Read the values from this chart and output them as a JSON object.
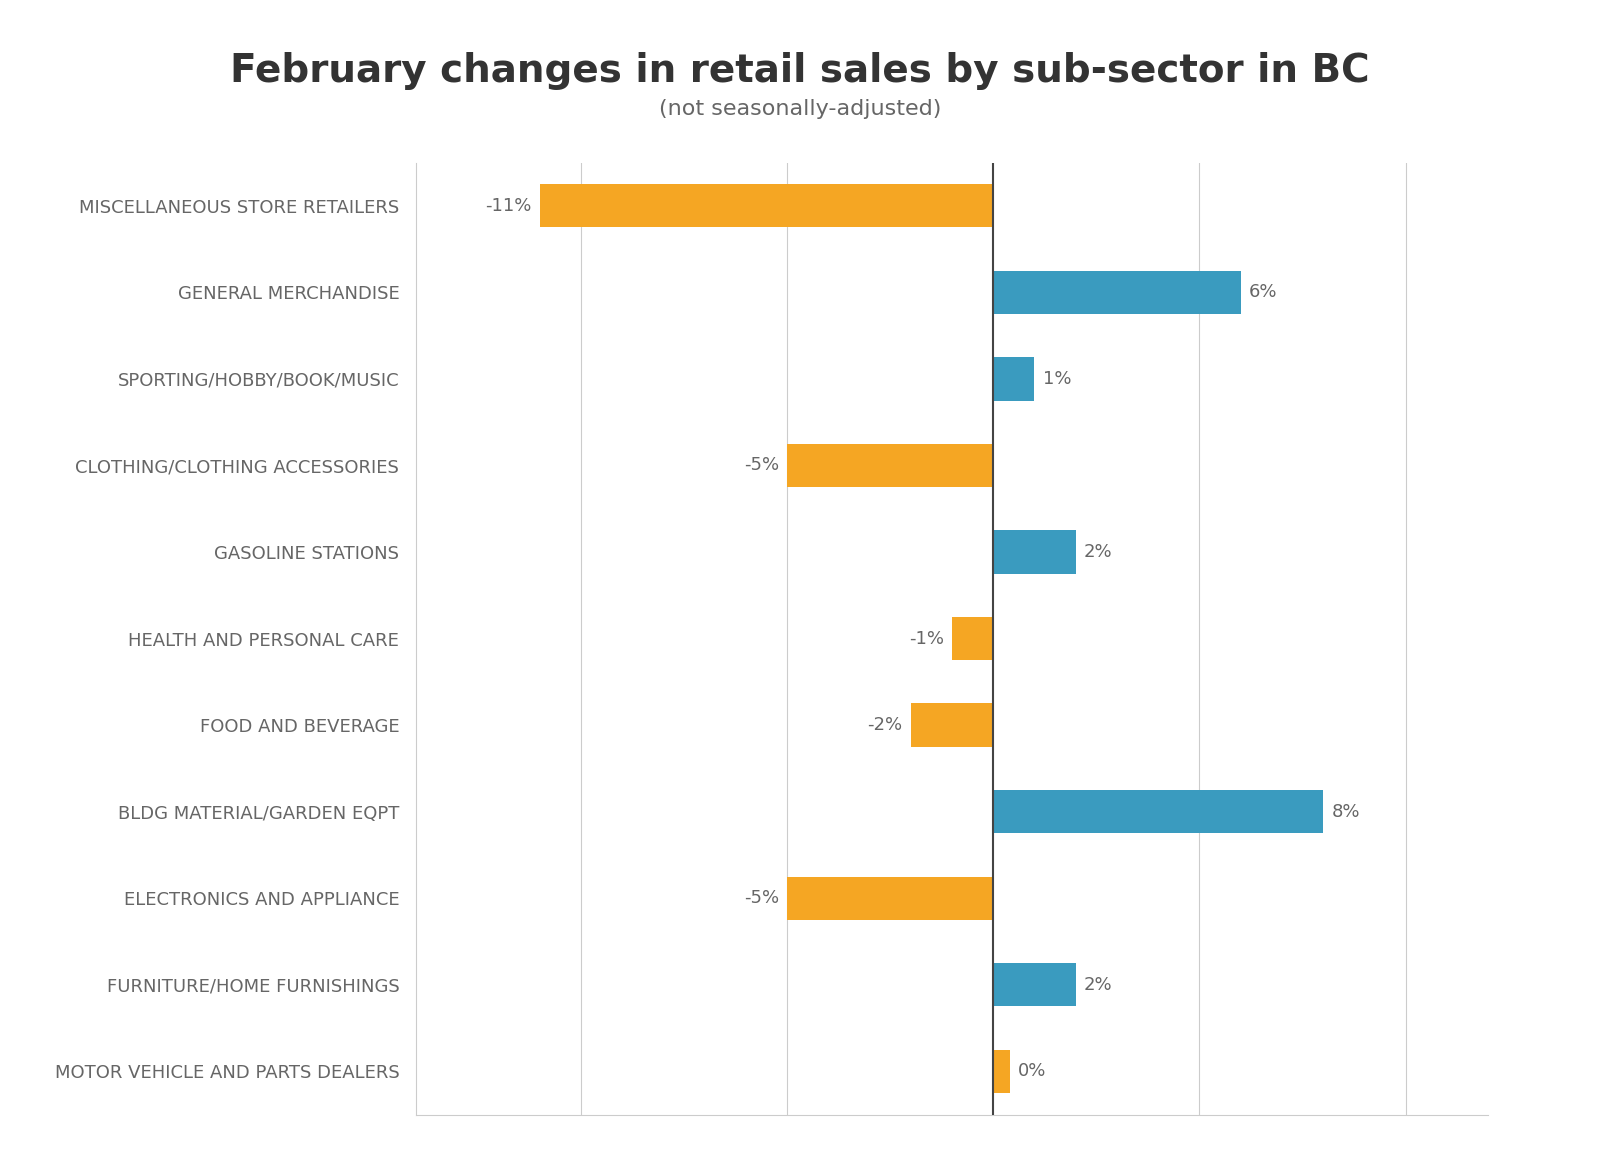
{
  "title": "February changes in retail sales by sub-sector in BC",
  "subtitle": "(not seasonally-adjusted)",
  "categories": [
    "MISCELLANEOUS STORE RETAILERS",
    "GENERAL MERCHANDISE",
    "SPORTING/HOBBY/BOOK/MUSIC",
    "CLOTHING/CLOTHING ACCESSORIES",
    "GASOLINE STATIONS",
    "HEALTH AND PERSONAL CARE",
    "FOOD AND BEVERAGE",
    "BLDG MATERIAL/GARDEN EQPT",
    "ELECTRONICS AND APPLIANCE",
    "FURNITURE/HOME FURNISHINGS",
    "MOTOR VEHICLE AND PARTS DEALERS"
  ],
  "values": [
    -11,
    6,
    1,
    -5,
    2,
    -1,
    -2,
    8,
    -5,
    2,
    0.4
  ],
  "bar_color_positive": "#3a9bbf",
  "bar_color_negative": "#f5a623",
  "background_color": "#ffffff",
  "xlim": [
    -14,
    12
  ],
  "title_fontsize": 28,
  "subtitle_fontsize": 16,
  "label_fontsize": 13,
  "value_label_fontsize": 13,
  "zero_line_color": "#444444",
  "grid_color": "#cccccc",
  "text_color": "#666666",
  "title_color": "#333333",
  "bar_height": 0.5,
  "value_labels": [
    "-11%",
    "6%",
    "1%",
    "-5%",
    "2%",
    "-1%",
    "-2%",
    "8%",
    "-5%",
    "2%",
    "0%"
  ]
}
